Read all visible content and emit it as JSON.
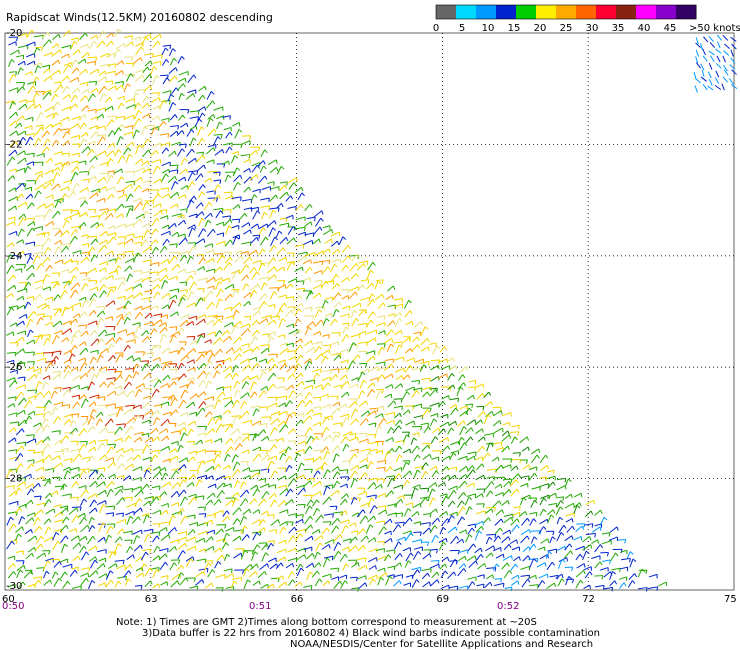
{
  "title": "Rapidscat Winds(12.5KM) 20160802 descending",
  "colorbar": {
    "ticks": [
      "0",
      "5",
      "10",
      "15",
      "20",
      "25",
      "30",
      "35",
      "40",
      "45",
      ">50 knots"
    ],
    "colors": [
      "#666666",
      "#00d8ff",
      "#0099ff",
      "#0022cc",
      "#00cc00",
      "#ffee00",
      "#ffaa00",
      "#ff6600",
      "#ff0033",
      "#882211",
      "#ff00ff",
      "#8800cc",
      "#330066"
    ]
  },
  "axes": {
    "lon_labels": [
      "60",
      "63",
      "66",
      "69",
      "72",
      "75"
    ],
    "lat_labels": [
      "-20",
      "-22",
      "-24",
      "-26",
      "-28",
      "-30"
    ]
  },
  "times": [
    "0:50",
    "0:51",
    "0:52"
  ],
  "notes": [
    "Note: 1) Times are GMT 2)Times along bottom correspond to measurement at ~20S",
    "3)Data buffer is 22 hrs from 20160802 4) Black wind barbs indicate possible contamination",
    "NOAA/NESDIS/Center for Satellite Applications and Research"
  ]
}
